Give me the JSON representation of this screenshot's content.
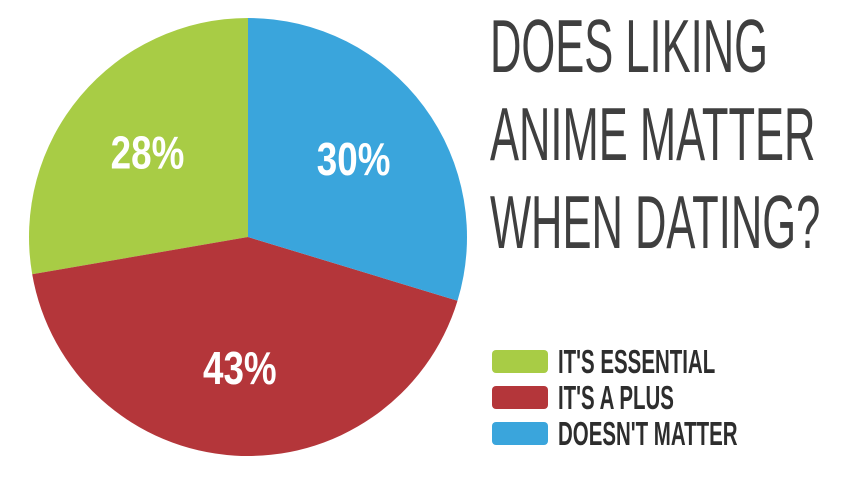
{
  "chart_data": {
    "type": "pie",
    "title": "DOES LIKING ANIME MATTER WHEN DATING?",
    "title_lines": [
      "DOES LIKING",
      "ANIME MATTER",
      "WHEN DATING?"
    ],
    "legend_position": "right-bottom",
    "slices": [
      {
        "label": "IT'S ESSENTIAL",
        "value": 28,
        "pct_label": "28%",
        "color": "#a8cc45"
      },
      {
        "label": "IT'S A PLUS",
        "value": 43,
        "pct_label": "43%",
        "color": "#b4363a"
      },
      {
        "label": "DOESN'T MATTER",
        "value": 30,
        "pct_label": "30%",
        "color": "#3aa5dc"
      }
    ],
    "slice_label_color": "#ffffff",
    "title_color": "#3f3f3f",
    "legend_text_color": "#2d2d2d",
    "background_color": "#ffffff"
  }
}
